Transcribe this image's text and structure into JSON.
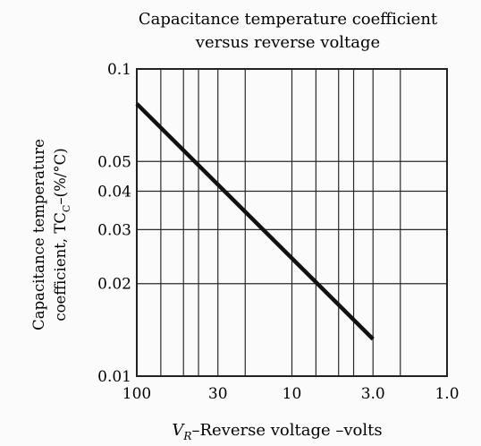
{
  "chart_data": {
    "type": "line",
    "title": [
      "Capacitance temperature coefficient",
      "versus reverse voltage"
    ],
    "xlabel": {
      "prefix": "V",
      "subscript": "R",
      "suffix": "–Reverse voltage –volts"
    },
    "ylabel": {
      "line1": "Capacitance temperature",
      "line2_prefix": "coefficient, TC",
      "line2_subscript": "C",
      "line2_suffix": "–(%/°C)"
    },
    "x_scale": "log",
    "x_reversed": true,
    "y_scale": "log",
    "xlim": [
      100,
      1.0
    ],
    "ylim": [
      0.01,
      0.1
    ],
    "x_tick_labels": [
      {
        "value": 100,
        "label": "100"
      },
      {
        "value": 30,
        "label": "30"
      },
      {
        "value": 10,
        "label": "10"
      },
      {
        "value": 3,
        "label": "3.0"
      },
      {
        "value": 1,
        "label": "1.0"
      }
    ],
    "y_tick_labels": [
      {
        "value": 0.1,
        "label": "0.1"
      },
      {
        "value": 0.05,
        "label": "0.05"
      },
      {
        "value": 0.04,
        "label": "0.04"
      },
      {
        "value": 0.03,
        "label": "0.03"
      },
      {
        "value": 0.02,
        "label": "0.02"
      },
      {
        "value": 0.01,
        "label": "0.01"
      }
    ],
    "x_gridlines": [
      100,
      70,
      50,
      40,
      30,
      20,
      10,
      7,
      5,
      4,
      3,
      2,
      1
    ],
    "y_gridlines": [
      0.1,
      0.05,
      0.04,
      0.03,
      0.02,
      0.01
    ],
    "grid": true,
    "series": [
      {
        "x": [
          100,
          3
        ],
        "y": [
          0.077,
          0.0132
        ]
      }
    ]
  }
}
